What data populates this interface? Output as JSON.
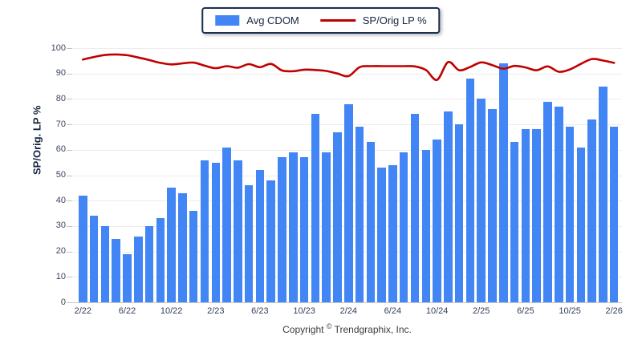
{
  "legend": {
    "items": [
      {
        "label": "Avg CDOM",
        "swatch": "bar-swatch"
      },
      {
        "label": "SP/Orig LP %",
        "swatch": "line-swatch"
      }
    ]
  },
  "chart_data": {
    "type": "combo-bar-line",
    "title": "",
    "xlabel": "",
    "ylabel": "SP/Orig. LP %",
    "ylim": [
      0,
      100
    ],
    "yticks": [
      0,
      10,
      20,
      30,
      40,
      50,
      60,
      70,
      80,
      90,
      100
    ],
    "x_tick_labels": [
      "2/22",
      "6/22",
      "10/22",
      "2/23",
      "6/23",
      "10/23",
      "2/24",
      "6/24",
      "10/24",
      "2/25",
      "6/25",
      "10/25",
      "2/26"
    ],
    "x_tick_every": 4,
    "grid": true,
    "legend_position": "top-center",
    "series": [
      {
        "name": "Avg CDOM",
        "type": "bar",
        "color": "#4285f4",
        "values": [
          42,
          34,
          30,
          25,
          19,
          26,
          30,
          33,
          45,
          43,
          36,
          56,
          55,
          61,
          56,
          46,
          52,
          48,
          57,
          59,
          57,
          74,
          59,
          67,
          78,
          69,
          63,
          53,
          54,
          59,
          74,
          60,
          64,
          75,
          70,
          88,
          80,
          76,
          94,
          63,
          68,
          68,
          79,
          77,
          69,
          61,
          72,
          85,
          69
        ]
      },
      {
        "name": "SP/Orig LP %",
        "type": "line",
        "color": "#c00000",
        "values": [
          95.5,
          96.5,
          97.3,
          97.5,
          97.2,
          96.3,
          95.3,
          94.2,
          93.6,
          94,
          94.3,
          93.1,
          92.1,
          92.9,
          92.3,
          93.7,
          92.5,
          93.8,
          91.2,
          90.9,
          91.5,
          91.4,
          91,
          90,
          89,
          92.5,
          92.9,
          92.9,
          92.9,
          92.9,
          92.8,
          91.4,
          87.5,
          94.5,
          91.3,
          92.6,
          94.4,
          93.3,
          91.9,
          93,
          92.4,
          91.3,
          92.8,
          90.7,
          91.6,
          93.8,
          95.7,
          95.1,
          94.2
        ]
      }
    ]
  },
  "footer": {
    "copyright_prefix": "Copyright",
    "copyright_symbol": "©",
    "copyright_suffix": "Trendgraphix, Inc."
  },
  "colors": {
    "bar": "#4285f4",
    "line": "#c00000",
    "legend_border": "#1b2f4e",
    "gridline": "#ededed",
    "axis": "#c8c8c8"
  }
}
